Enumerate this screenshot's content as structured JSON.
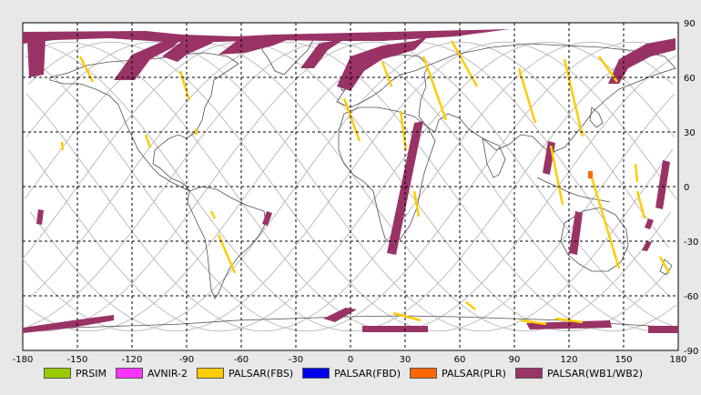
{
  "map": {
    "lon_ticks": [
      "-180",
      "-150",
      "-120",
      "-90",
      "-60",
      "-30",
      "0",
      "30",
      "60",
      "90",
      "120",
      "150",
      "180"
    ],
    "lat_ticks": [
      "90",
      "60",
      "30",
      "0",
      "-30",
      "-60",
      "-90"
    ],
    "grid": "dashed",
    "track_color": "#bdbdbd",
    "coast_color": "#505050"
  },
  "legend": [
    {
      "label": "PRSIM",
      "color": "#99cc00"
    },
    {
      "label": "AVNIR-2",
      "color": "#ff33ff"
    },
    {
      "label": "PALSAR(FBS)",
      "color": "#ffcc00"
    },
    {
      "label": "PALSAR(FBD)",
      "color": "#0000ee"
    },
    {
      "label": "PALSAR(PLR)",
      "color": "#ff6600"
    },
    {
      "label": "PALSAR(WB1/WB2)",
      "color": "#993366"
    }
  ]
}
